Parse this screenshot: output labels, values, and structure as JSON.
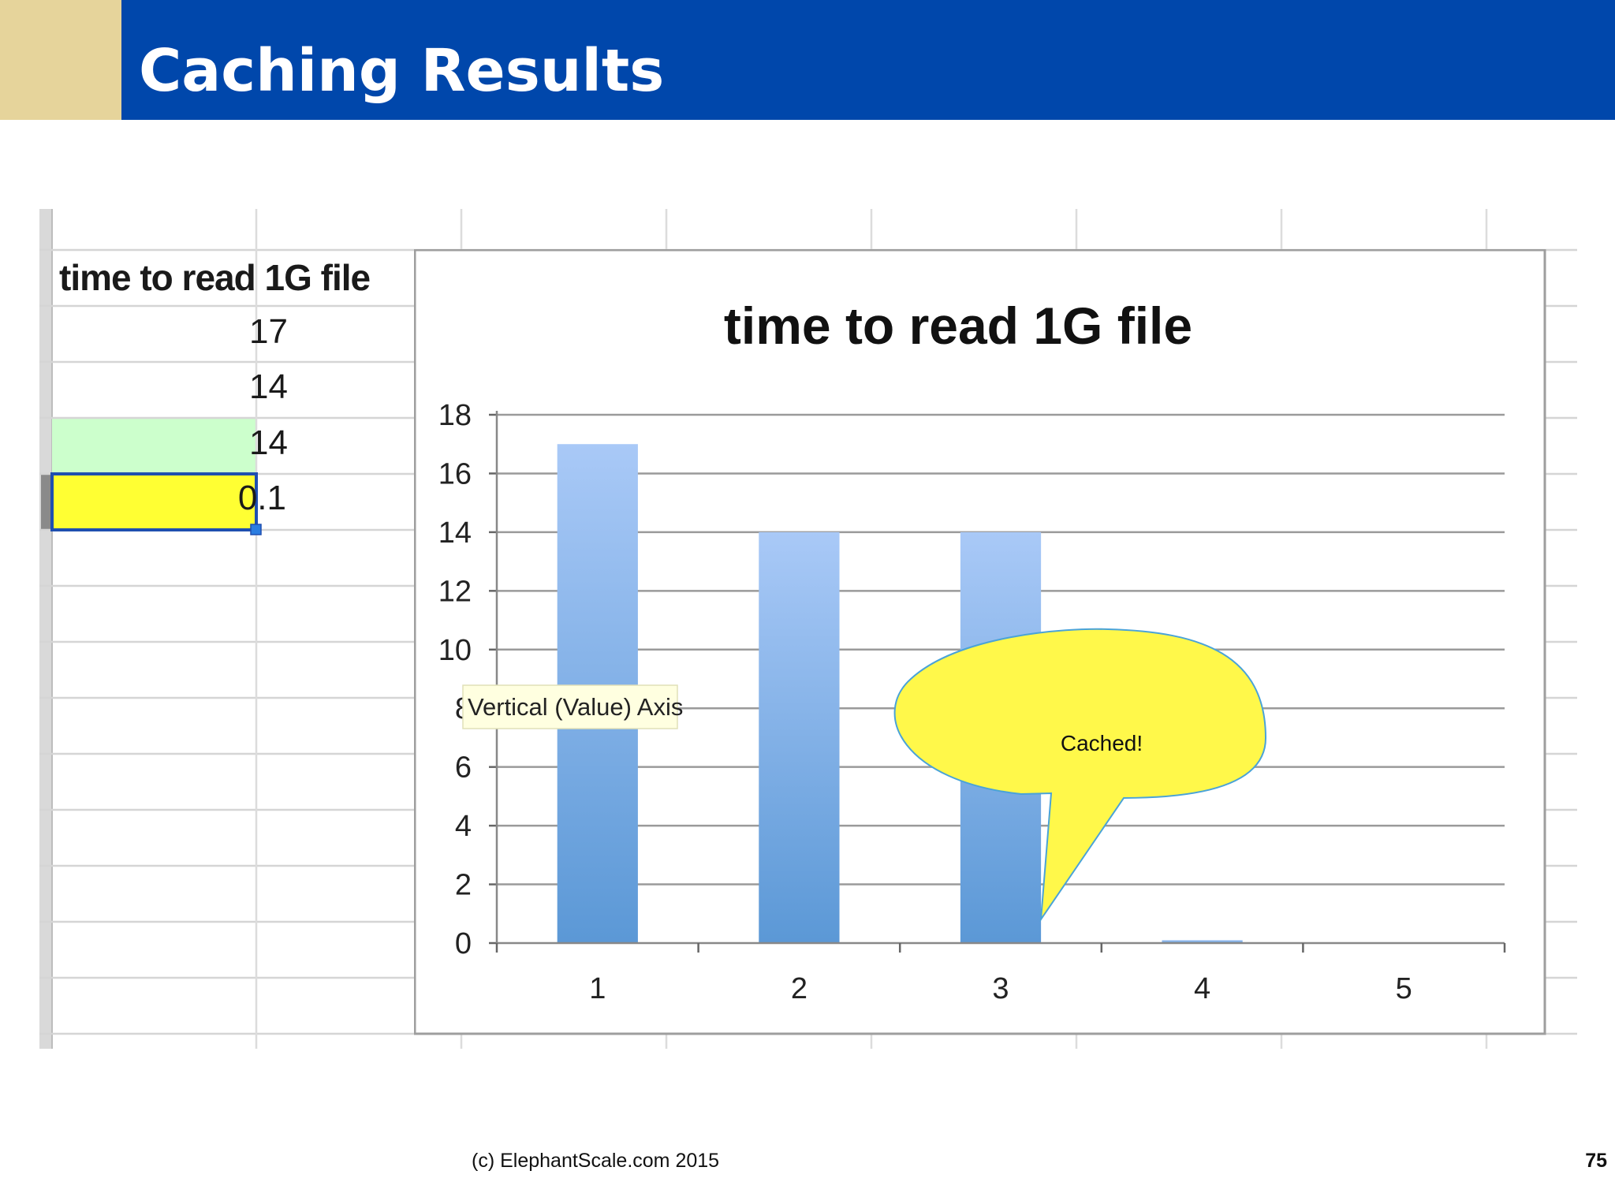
{
  "slide": {
    "title": "Caching Results",
    "footer": "(c) ElephantScale.com  2015",
    "page_number": "75",
    "colors": {
      "header_blue": "#0047ab",
      "header_accent": "#e6d49b",
      "bar_top": "#a9c9f7",
      "bar_bottom": "#5b98d6",
      "callout_fill": "#fff84a",
      "highlight_green": "#ccffcc",
      "selected_yellow": "#ffff33"
    }
  },
  "spreadsheet": {
    "header": "time to read 1G file",
    "values": [
      "17",
      "14",
      "14",
      "0.1"
    ],
    "highlighted_row": 2,
    "selected_row": 3
  },
  "chart_data": {
    "type": "bar",
    "title": "time to read 1G file",
    "categories": [
      "1",
      "2",
      "3",
      "4",
      "5"
    ],
    "values": [
      17,
      14,
      14,
      0.1,
      null
    ],
    "yticks": [
      "0",
      "2",
      "4",
      "6",
      "8",
      "10",
      "12",
      "14",
      "16",
      "18"
    ],
    "ylim": [
      0,
      18
    ],
    "grid": true,
    "tooltip": "Vertical (Value) Axis",
    "callout": {
      "text": "Cached!",
      "category": "4"
    }
  }
}
